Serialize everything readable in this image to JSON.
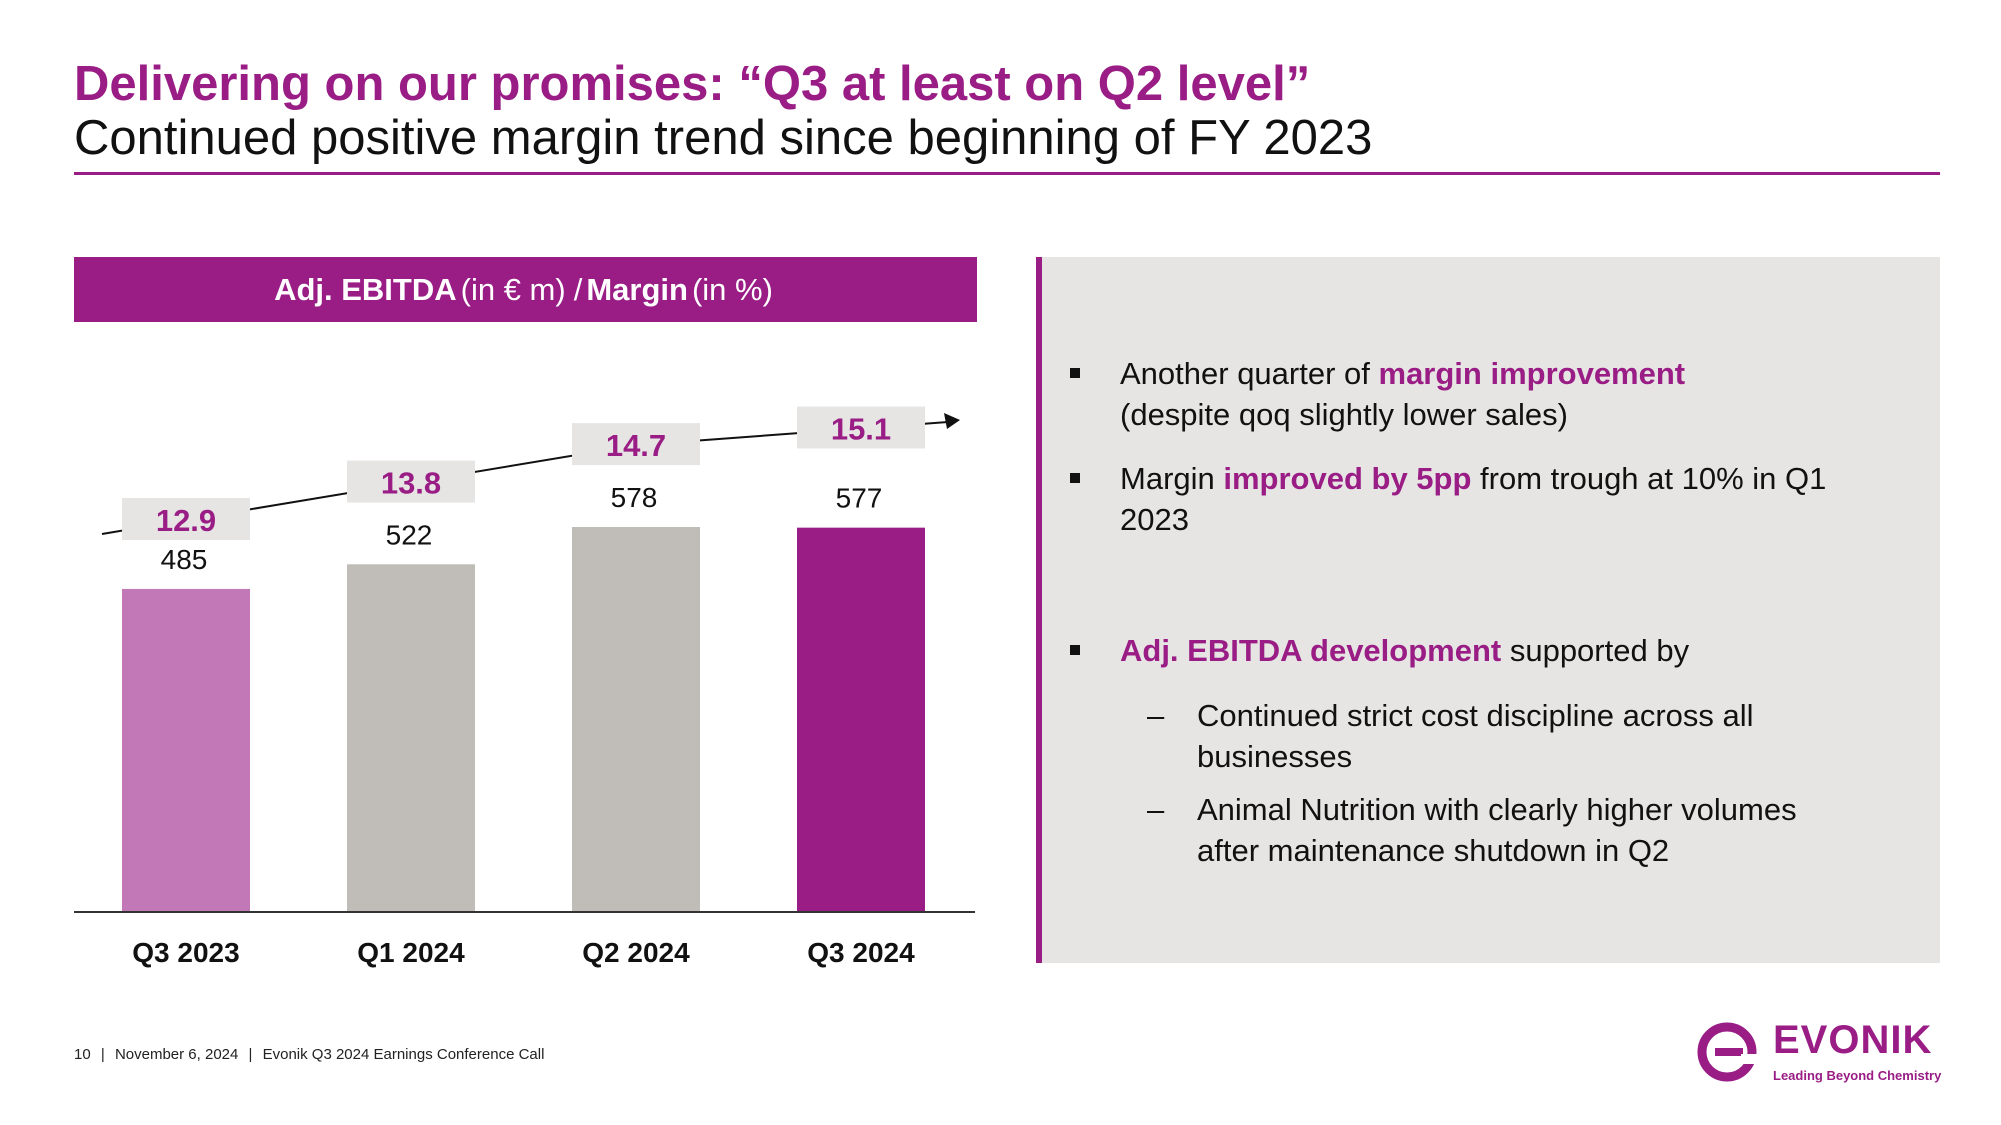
{
  "header": {
    "title": "Delivering on our promises: “Q3 at least on Q2 level”",
    "subtitle": "Continued positive margin trend since beginning of FY 2023"
  },
  "chart_header": {
    "metric1": "Adj. EBITDA",
    "unit1": "(in € m)",
    "separator": "/",
    "metric2": "Margin",
    "unit2": "(in %)"
  },
  "chart_data": {
    "type": "bar",
    "title": "Adj. EBITDA (in € m) / Margin (in %)",
    "categories": [
      "Q3 2023",
      "Q1 2024",
      "Q2 2024",
      "Q3 2024"
    ],
    "series": [
      {
        "name": "Adj. EBITDA (in € m)",
        "values": [
          485,
          522,
          578,
          577
        ]
      },
      {
        "name": "Margin (in %)",
        "values": [
          12.9,
          13.8,
          14.7,
          15.1
        ],
        "labels": [
          "12.9",
          "13.8",
          "14.7",
          "15.1"
        ]
      }
    ],
    "bar_colors": [
      "#c278b6",
      "#c0bdb8",
      "#c0bdb8",
      "#991d85"
    ],
    "ylim": [
      0,
      578
    ],
    "xlabel": "",
    "ylabel": ""
  },
  "panel": {
    "bullet1": {
      "pre": "Another quarter of ",
      "hl": "margin improvement",
      "post": "(despite qoq slightly lower sales)"
    },
    "bullet2": {
      "pre": "Margin ",
      "hl": "improved by 5pp",
      "post": " from trough at 10% in Q1 2023"
    },
    "bullet3": {
      "hl": "Adj. EBITDA development",
      "post": " supported by"
    },
    "sub1": "Continued strict cost discipline across all businesses",
    "sub2": "Animal Nutrition with clearly higher volumes after maintenance shutdown in Q2",
    "dash": "–"
  },
  "footer": {
    "page": "10",
    "sep": "|",
    "date": "November 6, 2024",
    "event": "Evonik Q3 2024 Earnings Conference Call"
  },
  "logo": {
    "name": "EVONIK",
    "tagline": "Leading Beyond Chemistry"
  },
  "colors": {
    "brand_purple": "#991d85",
    "light_purple": "#c278b6",
    "grey_bar": "#c0bdb8",
    "label_box": "#e6e5e4",
    "panel_bg": "#e6e5e4"
  }
}
